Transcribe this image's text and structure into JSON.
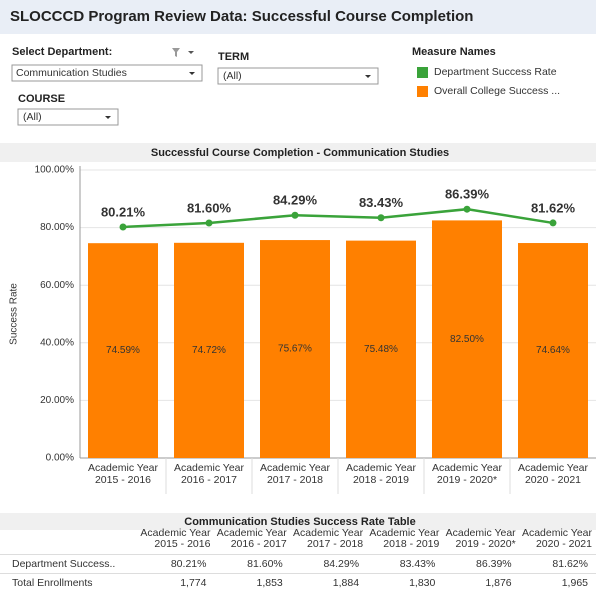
{
  "header": {
    "title": "SLOCCCD Program Review Data: Successful Course Completion"
  },
  "filters": {
    "department": {
      "label": "Select Department:",
      "value": "Communication Studies"
    },
    "term": {
      "label": "TERM",
      "value": "(All)"
    },
    "course": {
      "label": "COURSE",
      "value": "(All)"
    }
  },
  "legend": {
    "title": "Measure Names"
  },
  "chart_data": {
    "type": "combo",
    "title": "Successful Course Completion - Communication Studies",
    "y_label": "Success Rate",
    "categories": [
      "Academic Year 2015 - 2016",
      "Academic Year 2016 - 2017",
      "Academic Year 2017 - 2018",
      "Academic Year 2018 - 2019",
      "Academic Year 2019 - 2020*",
      "Academic Year 2020 - 2021"
    ],
    "series": [
      {
        "name": "Department Success Rate",
        "color": "#3aa33a",
        "mark": "line",
        "values": [
          80.21,
          81.6,
          84.29,
          83.43,
          86.39,
          81.62
        ],
        "value_labels": [
          "80.21%",
          "81.60%",
          "84.29%",
          "83.43%",
          "86.39%",
          "81.62%"
        ]
      },
      {
        "name": "Overall College Success ...",
        "color": "#ff8000",
        "mark": "bar",
        "values": [
          74.59,
          74.72,
          75.67,
          75.48,
          82.5,
          74.64
        ],
        "value_labels": [
          "74.59%",
          "74.72%",
          "75.67%",
          "75.48%",
          "82.50%",
          "74.64%"
        ]
      }
    ],
    "ylim": [
      0,
      100
    ],
    "yticks": [
      {
        "value": 0,
        "label": "0.00%"
      },
      {
        "value": 20,
        "label": "20.00%"
      },
      {
        "value": 40,
        "label": "40.00%"
      },
      {
        "value": 60,
        "label": "60.00%"
      },
      {
        "value": 80,
        "label": "80.00%"
      },
      {
        "value": 100,
        "label": "100.00%"
      }
    ],
    "grid": true
  },
  "table": {
    "title": "Communication Studies Success Rate Table",
    "columns": [
      "Academic Year 2015 - 2016",
      "Academic Year 2016 - 2017",
      "Academic Year 2017 - 2018",
      "Academic Year 2018 - 2019",
      "Academic Year 2019 - 2020*",
      "Academic Year 2020 - 2021"
    ],
    "rows": [
      {
        "label": "Department Success..",
        "cells": [
          "80.21%",
          "81.60%",
          "84.29%",
          "83.43%",
          "86.39%",
          "81.62%"
        ]
      },
      {
        "label": "Total Enrollments",
        "cells": [
          "1,774",
          "1,853",
          "1,884",
          "1,830",
          "1,876",
          "1,965"
        ]
      }
    ]
  }
}
